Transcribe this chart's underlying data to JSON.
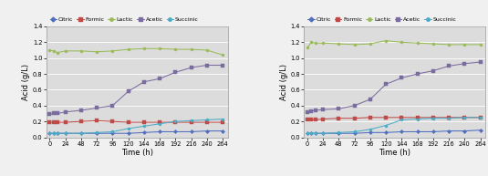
{
  "time": [
    0,
    6,
    12,
    24,
    48,
    72,
    96,
    120,
    144,
    168,
    192,
    216,
    240,
    264
  ],
  "left": {
    "Citric": [
      0.05,
      0.05,
      0.05,
      0.05,
      0.05,
      0.05,
      0.05,
      0.05,
      0.06,
      0.07,
      0.07,
      0.07,
      0.08,
      0.08
    ],
    "Formic": [
      0.19,
      0.19,
      0.19,
      0.19,
      0.2,
      0.21,
      0.2,
      0.19,
      0.19,
      0.19,
      0.19,
      0.19,
      0.19,
      0.19
    ],
    "Lactic": [
      1.1,
      1.09,
      1.07,
      1.09,
      1.09,
      1.08,
      1.09,
      1.11,
      1.12,
      1.12,
      1.11,
      1.11,
      1.1,
      1.04
    ],
    "Acetic": [
      0.29,
      0.3,
      0.3,
      0.32,
      0.34,
      0.37,
      0.4,
      0.58,
      0.7,
      0.74,
      0.82,
      0.88,
      0.91,
      0.91
    ],
    "Succinic": [
      0.05,
      0.05,
      0.05,
      0.05,
      0.05,
      0.06,
      0.07,
      0.11,
      0.14,
      0.17,
      0.2,
      0.21,
      0.22,
      0.23
    ]
  },
  "right": {
    "Citric": [
      0.05,
      0.05,
      0.05,
      0.05,
      0.05,
      0.05,
      0.06,
      0.06,
      0.07,
      0.07,
      0.07,
      0.08,
      0.08,
      0.09
    ],
    "Formic": [
      0.22,
      0.22,
      0.22,
      0.23,
      0.24,
      0.24,
      0.25,
      0.25,
      0.25,
      0.25,
      0.25,
      0.25,
      0.25,
      0.25
    ],
    "Lactic": [
      1.13,
      1.2,
      1.19,
      1.19,
      1.18,
      1.17,
      1.18,
      1.22,
      1.2,
      1.19,
      1.18,
      1.17,
      1.17,
      1.17
    ],
    "Acetic": [
      0.32,
      0.33,
      0.34,
      0.35,
      0.36,
      0.4,
      0.48,
      0.67,
      0.75,
      0.8,
      0.84,
      0.9,
      0.93,
      0.95
    ],
    "Succinic": [
      0.05,
      0.05,
      0.05,
      0.05,
      0.06,
      0.07,
      0.1,
      0.15,
      0.22,
      0.23,
      0.24,
      0.24,
      0.25,
      0.25
    ]
  },
  "colors": {
    "Citric": "#4F6EBF",
    "Formic": "#BE4B48",
    "Lactic": "#9BBB59",
    "Acetic": "#7B6CA0",
    "Succinic": "#4BACC6"
  },
  "markers": {
    "Citric": "D",
    "Formic": "s",
    "Lactic": "o",
    "Acetic": "s",
    "Succinic": "o"
  },
  "ylim": [
    0,
    1.4
  ],
  "yticks": [
    0.0,
    0.2,
    0.4,
    0.6,
    0.8,
    1.0,
    1.2,
    1.4
  ],
  "xticks": [
    0,
    24,
    48,
    72,
    96,
    120,
    144,
    168,
    192,
    216,
    240,
    264
  ],
  "xlabel": "Time (h)",
  "ylabel": "Acid (g/L)",
  "legend_order": [
    "Citric",
    "Formic",
    "Lactic",
    "Acetic",
    "Succinic"
  ],
  "bg_color": "#DCDCDC",
  "fig_color": "#F0F0F0"
}
